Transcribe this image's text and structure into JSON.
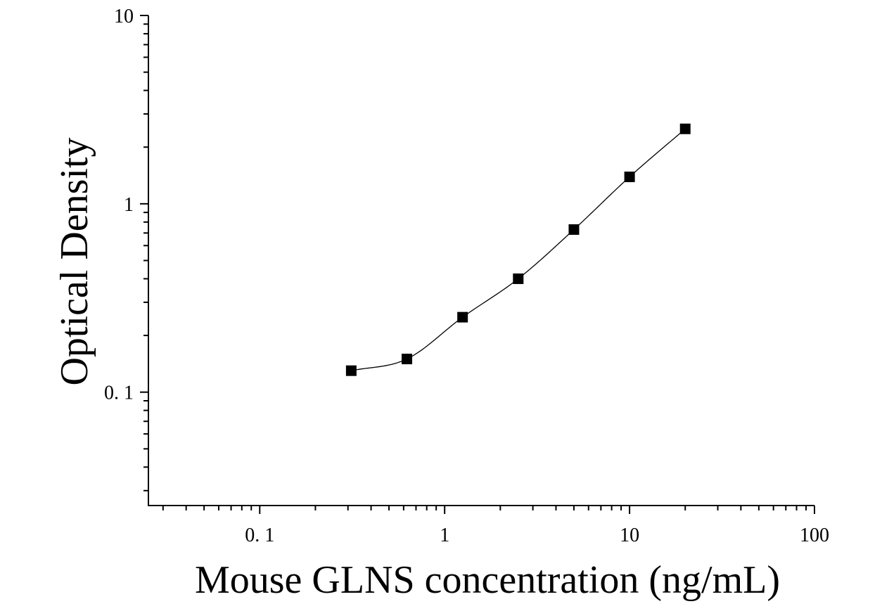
{
  "chart_data": {
    "type": "scatter",
    "title": "",
    "xlabel": "Mouse GLNS concentration (ng/mL)",
    "ylabel": "Optical Density",
    "x_scale": "log",
    "y_scale": "log",
    "xlim": [
      0.025,
      100
    ],
    "ylim": [
      0.025,
      10
    ],
    "x_ticks": [
      0.1,
      1,
      10,
      100
    ],
    "x_tick_labels": [
      "0. 1",
      "1",
      "10",
      "100"
    ],
    "y_ticks": [
      0.1,
      1,
      10
    ],
    "y_tick_labels": [
      "0. 1",
      "1",
      "10"
    ],
    "grid": false,
    "series": [
      {
        "x": [
          0.3125,
          0.625,
          1.25,
          2.5,
          5,
          10,
          20
        ],
        "y": [
          0.13,
          0.15,
          0.25,
          0.4,
          0.73,
          1.39,
          2.5
        ],
        "marker": "square",
        "fit_line": true
      }
    ],
    "colors": {
      "marker": "#000000",
      "line": "#000000",
      "axis": "#000000"
    }
  }
}
